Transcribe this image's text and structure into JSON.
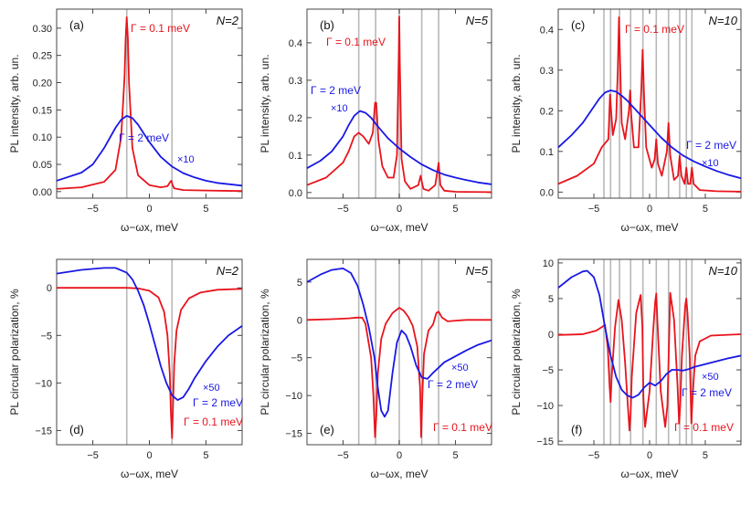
{
  "chart_data": [
    {
      "id": "a",
      "type": "line",
      "panel_label": "(a)",
      "corner_label": "N=2",
      "xlabel": "ω−ωx, meV",
      "ylabel": "PL intensity, arb. un.",
      "xlim": [
        -8.2,
        8.2
      ],
      "ylim": [
        -0.012,
        0.335
      ],
      "xticks": [
        -5,
        0,
        5
      ],
      "xtick_labels": [
        "−5",
        "0",
        "5"
      ],
      "yticks": [
        0,
        0.05,
        0.1,
        0.15,
        0.2,
        0.25,
        0.3
      ],
      "ytick_labels": [
        "0.00",
        "0.05",
        "0.10",
        "0.15",
        "0.20",
        "0.25",
        "0.30"
      ],
      "level_lines": [
        -2,
        2
      ],
      "series": [
        {
          "name": "Γ = 0.1 meV",
          "color": "#e8141c",
          "multiplier": "",
          "x": [
            -8.2,
            -6,
            -4,
            -3,
            -2.5,
            -2.2,
            -2.1,
            -2.0,
            -1.9,
            -1.8,
            -1.5,
            -1,
            0,
            1,
            1.6,
            1.85,
            1.95,
            2.05,
            2.2,
            3,
            5,
            8.2
          ],
          "y": [
            0.005,
            0.008,
            0.018,
            0.04,
            0.1,
            0.21,
            0.28,
            0.32,
            0.28,
            0.2,
            0.08,
            0.03,
            0.012,
            0.008,
            0.01,
            0.018,
            0.02,
            0.012,
            0.006,
            0.003,
            0.002,
            0.001
          ]
        },
        {
          "name": "Γ = 2 meV",
          "color": "#1818e6",
          "multiplier": "×10",
          "x": [
            -8.2,
            -6,
            -5,
            -4,
            -3,
            -2.5,
            -2,
            -1.5,
            -1,
            0,
            1,
            2,
            3,
            4,
            5,
            6,
            8.2
          ],
          "y": [
            0.02,
            0.035,
            0.05,
            0.08,
            0.117,
            0.132,
            0.139,
            0.135,
            0.123,
            0.091,
            0.064,
            0.046,
            0.034,
            0.026,
            0.02,
            0.016,
            0.011
          ]
        }
      ]
    },
    {
      "id": "b",
      "type": "line",
      "panel_label": "(b)",
      "corner_label": "N=5",
      "xlabel": "ω−ωx, meV",
      "ylabel": "PL intensity, arb. un.",
      "xlim": [
        -8.2,
        8.2
      ],
      "ylim": [
        -0.015,
        0.49
      ],
      "xticks": [
        -5,
        0,
        5
      ],
      "xtick_labels": [
        "−5",
        "0",
        "5"
      ],
      "yticks": [
        0,
        0.1,
        0.2,
        0.3,
        0.4
      ],
      "ytick_labels": [
        "0.0",
        "0.1",
        "0.2",
        "0.3",
        "0.4"
      ],
      "level_lines": [
        -3.6,
        -2.1,
        0,
        2,
        3.5
      ],
      "series": [
        {
          "name": "Γ = 0.1 meV",
          "color": "#e8141c",
          "multiplier": "",
          "x": [
            -8.2,
            -6.5,
            -5,
            -4.5,
            -4,
            -3.6,
            -3.2,
            -2.7,
            -2.35,
            -2.15,
            -2.05,
            -1.85,
            -1.5,
            -1,
            -0.5,
            -0.2,
            -0.05,
            0,
            0.05,
            0.2,
            0.5,
            1,
            1.7,
            1.9,
            2.0,
            2.15,
            2.6,
            3.2,
            3.4,
            3.5,
            3.65,
            4,
            5,
            8.2
          ],
          "y": [
            0.02,
            0.04,
            0.08,
            0.11,
            0.15,
            0.16,
            0.15,
            0.13,
            0.16,
            0.24,
            0.24,
            0.14,
            0.07,
            0.04,
            0.04,
            0.1,
            0.36,
            0.47,
            0.35,
            0.09,
            0.03,
            0.01,
            0.02,
            0.045,
            0.03,
            0.01,
            0.005,
            0.02,
            0.06,
            0.08,
            0.02,
            0.005,
            0.002,
            0.001
          ]
        },
        {
          "name": "Γ = 2 meV",
          "color": "#1818e6",
          "multiplier": "×10",
          "x": [
            -8.2,
            -7,
            -6,
            -5,
            -4.5,
            -4,
            -3.5,
            -3,
            -2.5,
            -2,
            -1,
            0,
            1,
            2,
            3,
            4,
            5,
            6,
            7,
            8.2
          ],
          "y": [
            0.065,
            0.085,
            0.11,
            0.15,
            0.18,
            0.205,
            0.218,
            0.213,
            0.2,
            0.18,
            0.145,
            0.118,
            0.095,
            0.075,
            0.06,
            0.048,
            0.04,
            0.033,
            0.027,
            0.022
          ]
        }
      ]
    },
    {
      "id": "c",
      "type": "line",
      "panel_label": "(c)",
      "corner_label": "N=10",
      "xlabel": "ω−ωx, meV",
      "ylabel": "PL intensity, arb. un.",
      "xlim": [
        -8.2,
        8.2
      ],
      "ylim": [
        -0.015,
        0.45
      ],
      "xticks": [
        -5,
        0,
        5
      ],
      "xtick_labels": [
        "−5",
        "0",
        "5"
      ],
      "yticks": [
        0,
        0.1,
        0.2,
        0.3,
        0.4
      ],
      "ytick_labels": [
        "0.0",
        "0.1",
        "0.2",
        "0.3",
        "0.4"
      ],
      "level_lines": [
        -4.1,
        -3.5,
        -2.7,
        -1.7,
        -0.6,
        0.6,
        1.7,
        2.7,
        3.3,
        3.8
      ],
      "series": [
        {
          "name": "Γ = 0.1 meV",
          "color": "#e8141c",
          "multiplier": "",
          "x": [
            -8.2,
            -6.5,
            -5,
            -4.3,
            -4.0,
            -3.7,
            -3.55,
            -3.45,
            -3.3,
            -3.0,
            -2.85,
            -2.75,
            -2.65,
            -2.5,
            -2.2,
            -1.85,
            -1.75,
            -1.65,
            -1.4,
            -1.0,
            -0.75,
            -0.62,
            -0.5,
            -0.3,
            0.2,
            0.45,
            0.6,
            0.75,
            1.1,
            1.55,
            1.7,
            1.85,
            2.2,
            2.55,
            2.7,
            2.85,
            3.15,
            3.3,
            3.45,
            3.65,
            3.8,
            3.95,
            4.5,
            6,
            8.2
          ],
          "y": [
            0.02,
            0.04,
            0.07,
            0.11,
            0.12,
            0.13,
            0.24,
            0.2,
            0.14,
            0.18,
            0.3,
            0.43,
            0.32,
            0.17,
            0.13,
            0.2,
            0.25,
            0.19,
            0.11,
            0.11,
            0.25,
            0.35,
            0.24,
            0.11,
            0.06,
            0.08,
            0.13,
            0.07,
            0.04,
            0.1,
            0.17,
            0.09,
            0.03,
            0.04,
            0.09,
            0.04,
            0.02,
            0.06,
            0.02,
            0.02,
            0.06,
            0.02,
            0.005,
            0.002,
            0.001
          ]
        },
        {
          "name": "Γ = 2 meV",
          "color": "#1818e6",
          "multiplier": "×10",
          "x": [
            -8.2,
            -7,
            -6,
            -5,
            -4.5,
            -4,
            -3.5,
            -3,
            -2.5,
            -2,
            -1,
            0,
            1,
            2,
            3,
            4,
            5,
            6,
            7,
            8.2
          ],
          "y": [
            0.11,
            0.14,
            0.17,
            0.21,
            0.23,
            0.245,
            0.25,
            0.247,
            0.237,
            0.225,
            0.195,
            0.165,
            0.135,
            0.11,
            0.09,
            0.075,
            0.063,
            0.052,
            0.043,
            0.034
          ]
        }
      ]
    },
    {
      "id": "d",
      "type": "line",
      "panel_label": "(d)",
      "corner_label": "N=2",
      "xlabel": "ω−ωx, meV",
      "ylabel": "PL circular polarization, %",
      "xlim": [
        -8.2,
        8.2
      ],
      "ylim": [
        -16.5,
        3
      ],
      "xticks": [
        -5,
        0,
        5
      ],
      "xtick_labels": [
        "−5",
        "0",
        "5"
      ],
      "yticks": [
        -15,
        -10,
        -5,
        0
      ],
      "ytick_labels": [
        "−15",
        "−10",
        "−5",
        "0"
      ],
      "level_lines": [
        -2,
        2
      ],
      "series": [
        {
          "name": "Γ = 0.1 meV",
          "color": "#e8141c",
          "multiplier": "",
          "x": [
            -8.2,
            -4,
            -2,
            -1,
            0,
            0.8,
            1.3,
            1.6,
            1.8,
            1.9,
            2.0,
            2.1,
            2.2,
            2.4,
            2.8,
            3.5,
            4.5,
            6,
            8.2
          ],
          "y": [
            0,
            0,
            0,
            -0.05,
            -0.3,
            -1,
            -2.5,
            -5,
            -9,
            -13,
            -15.8,
            -12,
            -8,
            -4.5,
            -2.3,
            -1.1,
            -0.5,
            -0.2,
            -0.1
          ]
        },
        {
          "name": "Γ = 2 meV",
          "color": "#1818e6",
          "multiplier": "×50",
          "x": [
            -8.2,
            -6,
            -4,
            -3,
            -2,
            -1.5,
            -1,
            -0.5,
            0,
            0.5,
            1,
            1.5,
            2,
            2.5,
            3,
            3.5,
            4,
            5,
            6,
            7,
            8.2
          ],
          "y": [
            1.5,
            1.9,
            2.1,
            2.1,
            1.6,
            0.9,
            -0.3,
            -1.8,
            -3.8,
            -6,
            -8.2,
            -10,
            -11.3,
            -11.8,
            -11.5,
            -10.6,
            -9.5,
            -7.7,
            -6.2,
            -5,
            -4
          ]
        }
      ]
    },
    {
      "id": "e",
      "type": "line",
      "panel_label": "(e)",
      "corner_label": "N=5",
      "xlabel": "ω−ωx, meV",
      "ylabel": "PL circular polarization, %",
      "xlim": [
        -8.2,
        8.2
      ],
      "ylim": [
        -16.5,
        8
      ],
      "xticks": [
        -5,
        0,
        5
      ],
      "xtick_labels": [
        "−5",
        "0",
        "5"
      ],
      "yticks": [
        -15,
        -10,
        -5,
        0,
        5
      ],
      "ytick_labels": [
        "−15",
        "−10",
        "−5",
        "0",
        "5"
      ],
      "level_lines": [
        -3.6,
        -2.1,
        0,
        2,
        3.5
      ],
      "series": [
        {
          "name": "Γ = 0.1 meV",
          "color": "#e8141c",
          "multiplier": "",
          "x": [
            -8.2,
            -6,
            -4.5,
            -3.8,
            -3.3,
            -3.0,
            -2.5,
            -2.3,
            -2.15,
            -2.05,
            -1.9,
            -1.6,
            -1.2,
            -0.6,
            0,
            0.4,
            0.8,
            1.2,
            1.6,
            1.85,
            1.95,
            2.05,
            2.2,
            2.6,
            3.0,
            3.3,
            3.5,
            3.8,
            4.3,
            5,
            6,
            8.2
          ],
          "y": [
            0,
            0.1,
            0.2,
            0.3,
            0.3,
            -0.5,
            -5,
            -10,
            -15.5,
            -13,
            -7,
            -2.5,
            -0.5,
            0.9,
            1.6,
            1.2,
            0.4,
            -0.8,
            -3.5,
            -9,
            -15.5,
            -10,
            -4.5,
            -1.4,
            -0.6,
            0.9,
            1.1,
            0.3,
            -0.2,
            -0.1,
            0,
            0
          ]
        },
        {
          "name": "Γ = 2 meV",
          "color": "#1818e6",
          "multiplier": "×50",
          "x": [
            -8.2,
            -7,
            -6,
            -5,
            -4.3,
            -3.7,
            -3.2,
            -2.7,
            -2.2,
            -1.9,
            -1.6,
            -1.3,
            -1,
            -0.6,
            -0.2,
            0.2,
            0.6,
            1,
            1.5,
            2,
            2.5,
            3,
            4,
            5,
            6,
            7,
            8.2
          ],
          "y": [
            5,
            6,
            6.6,
            6.8,
            6.2,
            4.5,
            2,
            -1,
            -5,
            -9,
            -12,
            -12.8,
            -12,
            -7,
            -3,
            -1.4,
            -2,
            -3.5,
            -6,
            -7.6,
            -7.8,
            -7,
            -5.6,
            -4.8,
            -4,
            -3.3,
            -2.7
          ]
        }
      ]
    },
    {
      "id": "f",
      "type": "line",
      "panel_label": "(f)",
      "corner_label": "N=10",
      "xlabel": "ω−ωx, meV",
      "ylabel": "PL circular polarization, %",
      "xlim": [
        -8.2,
        8.2
      ],
      "ylim": [
        -15.5,
        10.5
      ],
      "xticks": [
        -5,
        0,
        5
      ],
      "xtick_labels": [
        "−5",
        "0",
        "5"
      ],
      "yticks": [
        -15,
        -10,
        -5,
        0,
        5,
        10
      ],
      "ytick_labels": [
        "−15",
        "−10",
        "−5",
        "0",
        "5",
        "10"
      ],
      "level_lines": [
        -4.1,
        -3.5,
        -2.7,
        -1.7,
        -0.6,
        0.6,
        1.7,
        2.7,
        3.3,
        3.8
      ],
      "series": [
        {
          "name": "Γ = 0.1 meV",
          "color": "#e8141c",
          "multiplier": "",
          "x": [
            -8.2,
            -6,
            -4.8,
            -4.3,
            -4.0,
            -3.75,
            -3.6,
            -3.5,
            -3.4,
            -3.1,
            -2.8,
            -2.5,
            -2.2,
            -1.95,
            -1.8,
            -1.7,
            -1.6,
            -1.2,
            -0.8,
            -0.65,
            -0.55,
            -0.4,
            0,
            0.3,
            0.5,
            0.6,
            0.7,
            1.0,
            1.4,
            1.6,
            1.75,
            1.85,
            2.2,
            2.5,
            2.65,
            2.75,
            2.9,
            3.2,
            3.3,
            3.4,
            3.6,
            3.75,
            3.85,
            4.1,
            4.5,
            5.5,
            8.2
          ],
          "y": [
            -0.1,
            0,
            0.5,
            1,
            1.3,
            -2,
            -7,
            -9.5,
            -6,
            1,
            4.8,
            2,
            -4,
            -10,
            -13.5,
            -11,
            -6,
            3,
            5.5,
            1,
            -9,
            -13,
            -8,
            0,
            4.5,
            5.7,
            2,
            -8,
            -13,
            -10,
            -1,
            5.8,
            2,
            -7,
            -12.5,
            -10,
            -3,
            4,
            5,
            3,
            -3,
            -12.5,
            -9,
            -3,
            -1,
            -0.2,
            0
          ]
        },
        {
          "name": "Γ = 2 meV",
          "color": "#1818e6",
          "multiplier": "×50",
          "x": [
            -8.2,
            -7,
            -6,
            -5.6,
            -5,
            -4.5,
            -4,
            -3.5,
            -3,
            -2.5,
            -2,
            -1.5,
            -1,
            -0.5,
            0,
            0.5,
            1,
            1.5,
            2,
            2.5,
            3,
            3.5,
            4,
            5,
            6,
            7,
            8.2
          ],
          "y": [
            6.5,
            8,
            8.8,
            8.9,
            8,
            5.5,
            1,
            -3,
            -6,
            -7.8,
            -8.6,
            -8.9,
            -8.5,
            -7.5,
            -6.8,
            -7.2,
            -6.6,
            -5.6,
            -5,
            -5,
            -5.1,
            -4.9,
            -4.6,
            -4.2,
            -3.8,
            -3.4,
            -3
          ]
        }
      ]
    }
  ]
}
